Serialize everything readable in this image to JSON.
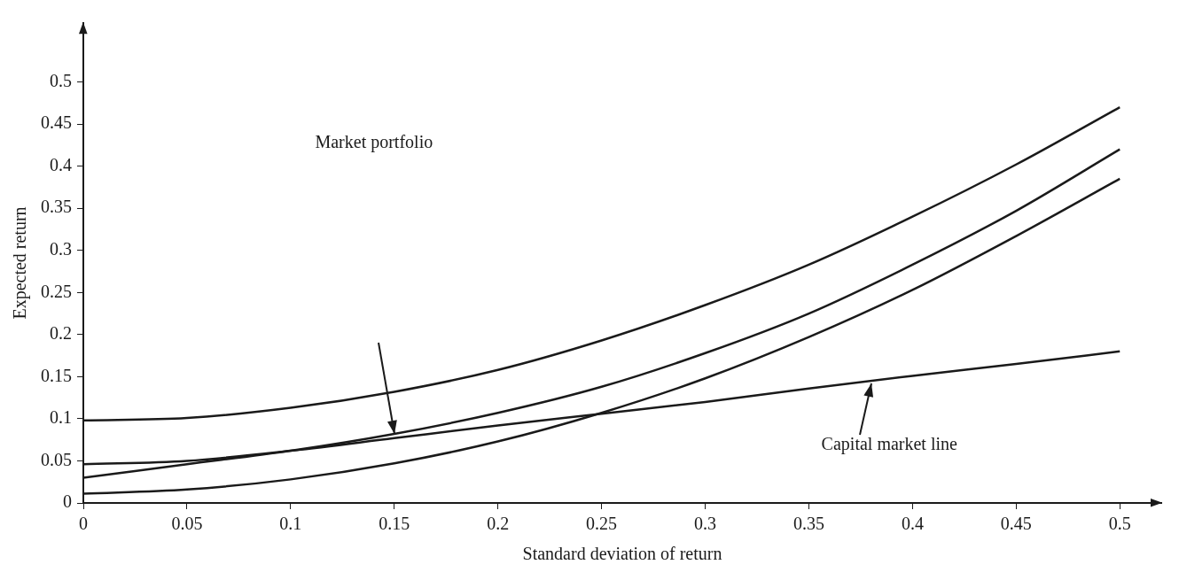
{
  "chart_data": {
    "type": "line",
    "xlabel": "Standard deviation of return",
    "ylabel": "Expected return",
    "x": [
      0,
      0.05,
      0.1,
      0.15,
      0.2,
      0.25,
      0.3,
      0.35,
      0.4,
      0.45,
      0.5
    ],
    "series": [
      {
        "color": "#1a1a1a",
        "values": [
          0.098,
          0.101,
          0.113,
          0.132,
          0.158,
          0.193,
          0.235,
          0.283,
          0.34,
          0.402,
          0.47
        ]
      },
      {
        "color": "#1a1a1a",
        "values": [
          0.03,
          0.046,
          0.062,
          0.082,
          0.107,
          0.138,
          0.178,
          0.225,
          0.283,
          0.347,
          0.42
        ]
      },
      {
        "color": "#1a1a1a",
        "values": [
          0.011,
          0.016,
          0.028,
          0.047,
          0.073,
          0.107,
          0.148,
          0.197,
          0.253,
          0.317,
          0.385
        ]
      },
      {
        "color": "#1a1a1a",
        "values": [
          0.046,
          0.05,
          0.062,
          0.077,
          0.092,
          0.106,
          0.12,
          0.136,
          0.151,
          0.165,
          0.18
        ]
      }
    ],
    "xlim": [
      0,
      0.52
    ],
    "xticks": [
      0,
      0.05,
      0.1,
      0.15,
      0.2,
      0.25,
      0.3,
      0.35,
      0.4,
      0.45,
      0.5
    ],
    "ylim": [
      0,
      0.57
    ],
    "yticks": [
      0,
      0.05,
      0.1,
      0.15,
      0.2,
      0.25,
      0.3,
      0.35,
      0.4,
      0.45,
      0.5
    ],
    "grid": false,
    "legend": false,
    "marker": "none",
    "line_style": "solid",
    "annotations": [
      "Market portfolio",
      {
        "text": "Capital market line",
        "x": 0.38,
        "y": 0.142
      }
    ]
  }
}
